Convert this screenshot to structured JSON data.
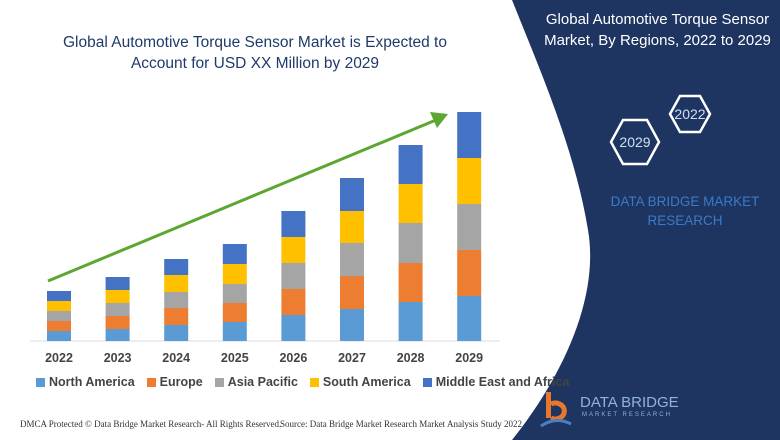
{
  "header": {
    "title": "Global Automotive Torque Sensor Market is Expected to Account for USD XX Million by 2029",
    "side_title": "Global Automotive Torque Sensor Market, By Regions, 2022 to 2029",
    "hex_labels": [
      "2022",
      "2029"
    ],
    "brand_text": "DATA BRIDGE MARKET RESEARCH"
  },
  "footer": {
    "dmca": "DMCA Protected © Data Bridge Market Research- All Rights Reserved.",
    "source": "Source: Data Bridge Market Research Market Analysis Study 2022",
    "logo": "DATA BRIDGE",
    "logo_sub": "MARKET RESEARCH"
  },
  "colors": {
    "panel": "#1e3461",
    "arrow": "#5ca732"
  },
  "chart_data": {
    "type": "bar",
    "stacked": true,
    "title": "Global Automotive Torque Sensor Market is Expected to Account for USD XX Million by 2029",
    "categories": [
      "2022",
      "2023",
      "2024",
      "2025",
      "2026",
      "2027",
      "2028",
      "2029"
    ],
    "series": [
      {
        "name": "North America",
        "color": "#5b9bd5",
        "values": [
          10,
          12,
          16,
          19,
          26,
          32,
          39,
          45
        ]
      },
      {
        "name": "Europe",
        "color": "#ed7d31",
        "values": [
          10,
          13,
          17,
          19,
          26,
          33,
          39,
          46
        ]
      },
      {
        "name": "Asia Pacific",
        "color": "#a5a5a5",
        "values": [
          10,
          13,
          16,
          19,
          26,
          33,
          40,
          46
        ]
      },
      {
        "name": "South America",
        "color": "#ffc000",
        "values": [
          10,
          13,
          17,
          20,
          26,
          32,
          39,
          46
        ]
      },
      {
        "name": "Middle East and Africa",
        "color": "#4472c4",
        "values": [
          10,
          13,
          16,
          20,
          26,
          33,
          39,
          46
        ]
      }
    ],
    "value_units": "relative (no y-axis shown)",
    "grid": false,
    "legend": "bottom",
    "trend_arrow": true
  }
}
